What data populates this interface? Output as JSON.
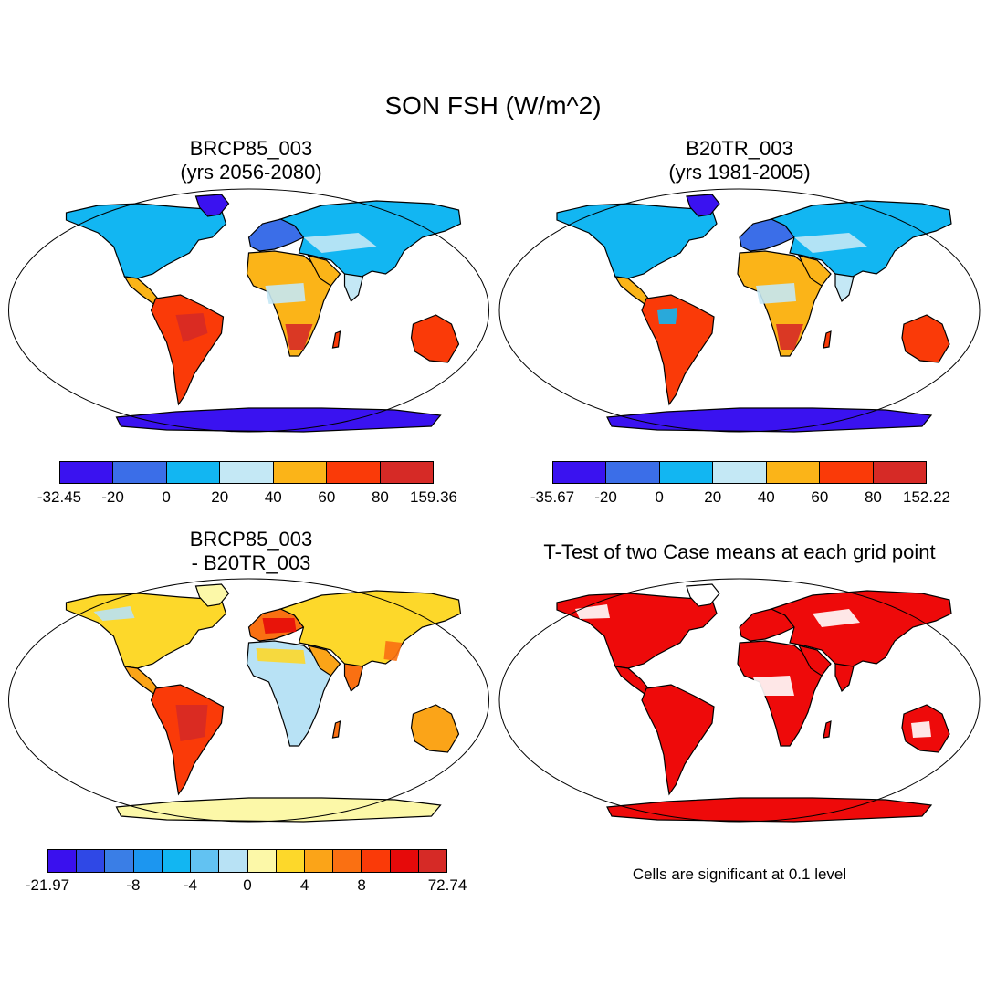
{
  "title": "SON FSH (W/m^2)",
  "panels": [
    {
      "title_line1": "BRCP85_003",
      "title_line2": "(yrs 2056-2080)",
      "colorbar": {
        "colors": [
          "#3a12f0",
          "#3b6ee8",
          "#12b6f2",
          "#c4e8f5",
          "#fbb418",
          "#fa3a08",
          "#d62a26"
        ],
        "labels": [
          "-32.45",
          "-20",
          "0",
          "20",
          "40",
          "60",
          "80",
          "159.36"
        ]
      }
    },
    {
      "title_line1": "B20TR_003",
      "title_line2": "(yrs 1981-2005)",
      "colorbar": {
        "colors": [
          "#3a12f0",
          "#3b6ee8",
          "#12b6f2",
          "#c4e8f5",
          "#fbb418",
          "#fa3a08",
          "#d62a26"
        ],
        "labels": [
          "-35.67",
          "-20",
          "0",
          "20",
          "40",
          "60",
          "80",
          "152.22"
        ]
      }
    },
    {
      "title_line1": "BRCP85_003",
      "title_line2": "- B20TR_003",
      "colorbar": {
        "colors": [
          "#3a10ee",
          "#2f48e6",
          "#3a7ee6",
          "#1c96f0",
          "#12b6f2",
          "#62c2f2",
          "#b8e2f5",
          "#fcf8a8",
          "#fdd82a",
          "#fba418",
          "#fa7012",
          "#fa3a08",
          "#e60a0a",
          "#d62a26"
        ],
        "labels": [
          "-21.97",
          "-8",
          "-4",
          "0",
          "4",
          "8",
          "72.74"
        ],
        "label_positions": [
          0,
          3,
          5,
          7,
          9,
          11,
          14
        ]
      }
    },
    {
      "title_line1": "T-Test of two Case means at each grid point",
      "note": "Cells are significant at 0.1 level"
    }
  ]
}
